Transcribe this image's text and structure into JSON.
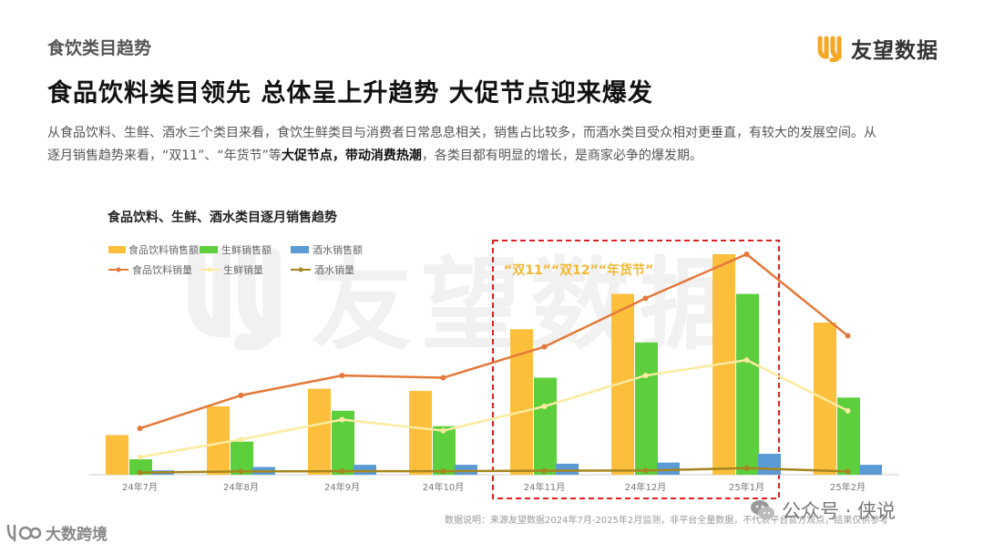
{
  "header": {
    "section_label": "食饮类目趋势",
    "brand_name": "友望数据",
    "headline": "食品饮料类目领先 总体呈上升趋势 大促节点迎来爆发"
  },
  "body": {
    "line1": "从食品饮料、生鲜、酒水三个类目来看，食饮生鲜类目与消费者日常息息相关，销售占比较多，而酒水类目受众相对更垂直，有较大的发展空间。从",
    "line2_a": "逐月销售趋势来看，“双11”、“年货节”等",
    "line2_bold": "大促节点，带动消费热潮",
    "line2_b": "，各类目都有明显的增长，是商家必争的爆发期。"
  },
  "watermark": {
    "text": "友望数据",
    "icon": "brand-logo-icon"
  },
  "highlight": {
    "label": "“双11”“双12”“年货节”"
  },
  "colors": {
    "food_bar": "#FCBF3C",
    "fresh_bar": "#5DCF3C",
    "wine_bar": "#5B9BD5",
    "food_line": "#E3793A",
    "fresh_line": "#FBEBA0",
    "wine_line": "#A6851E",
    "highlight": "#E02020"
  },
  "chart_data": {
    "type": "bar",
    "title": "食品饮料、生鲜、酒水类目逐月销售趋势",
    "categories": [
      "24年7月",
      "24年8月",
      "24年9月",
      "24年10月",
      "24年11月",
      "24年12月",
      "25年1月",
      "25年2月"
    ],
    "series": [
      {
        "name": "食品饮料销售额",
        "kind": "bar",
        "values": [
          18,
          31,
          39,
          38,
          66,
          82,
          100,
          69
        ]
      },
      {
        "name": "生鲜销售额",
        "kind": "bar",
        "values": [
          7,
          15,
          29,
          22,
          44,
          60,
          82,
          35
        ]
      },
      {
        "name": "酒水销售额",
        "kind": "bar",
        "values": [
          2,
          3.5,
          4.5,
          4.5,
          5,
          5.5,
          9.5,
          4.5
        ]
      },
      {
        "name": "食品饮料销量",
        "kind": "line",
        "values": [
          21,
          36,
          45,
          44,
          58,
          80,
          100,
          63
        ]
      },
      {
        "name": "生鲜销量",
        "kind": "line",
        "values": [
          8,
          16,
          25,
          20,
          31,
          45,
          52,
          29
        ]
      },
      {
        "name": "酒水销量",
        "kind": "line",
        "values": [
          1,
          1.5,
          1.6,
          1.6,
          1.8,
          1.9,
          3,
          1.5
        ]
      }
    ],
    "xlabel": "",
    "ylabel": "",
    "ylim": [
      0,
      100
    ],
    "grid": false,
    "legend_position": "top-left"
  },
  "footer": {
    "source": "数据说明：来源友望数据2024年7月-2025年2月监测，非平台全量数据，不代表平台官方观点，结果仅供参考",
    "wechat": "公众号 · 侠说",
    "left_brand": "大数跨境"
  }
}
